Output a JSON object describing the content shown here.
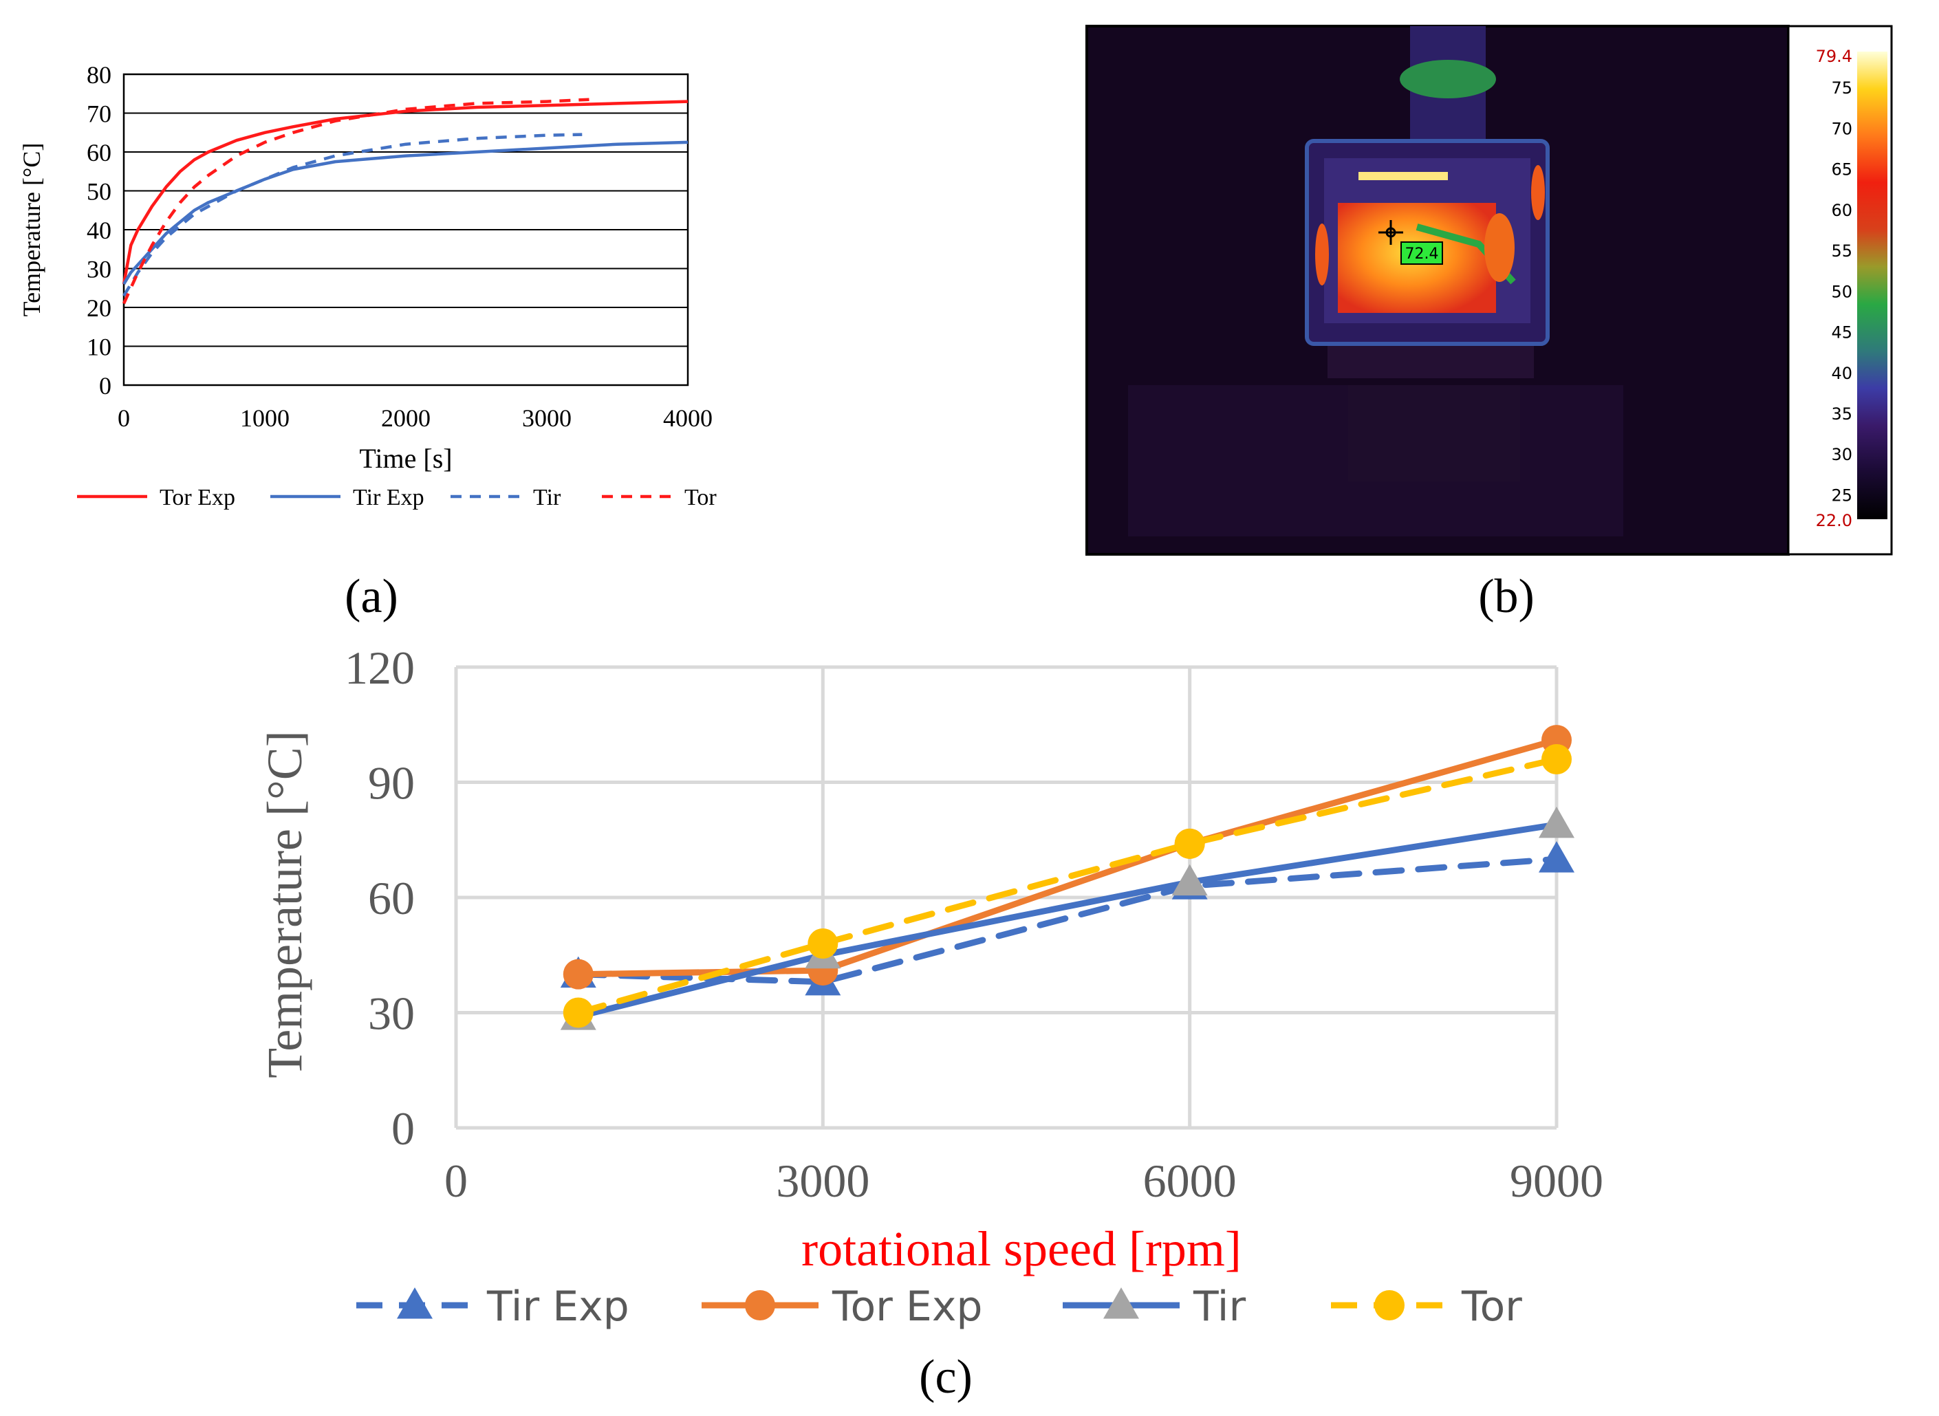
{
  "panel_labels": {
    "a": "(a)",
    "b": "(b)",
    "c": "(c)"
  },
  "colors": {
    "tor_exp_a": "#ff1a1a",
    "tir_exp_a": "#4472c4",
    "tir_a": "#4472c4",
    "tor_a": "#ff1a1a",
    "tir_exp_c": "#4472c4",
    "tor_exp_c": "#ed7d31",
    "tir_c": "#4472c4",
    "tir_marker_c": "#a5a5a5",
    "tor_c": "#ffc000",
    "xlabel_c": "#ff0000",
    "thermal_bg": "#14061f"
  },
  "thermal_image": {
    "scale_max": "79.4",
    "scale_min": "22.0",
    "scale_ticks": [
      "75",
      "70",
      "65",
      "60",
      "55",
      "50",
      "45",
      "40",
      "35",
      "30",
      "25"
    ],
    "spot_label": "72.4"
  },
  "chart_data": [
    {
      "panel": "a",
      "type": "line",
      "title": "",
      "xlabel": "Time [s]",
      "ylabel": "Temperature [°C]",
      "xlim": [
        0,
        4000
      ],
      "ylim": [
        0,
        80
      ],
      "xticks": [
        0,
        1000,
        2000,
        3000,
        4000
      ],
      "yticks": [
        0,
        10,
        20,
        30,
        40,
        50,
        60,
        70,
        80
      ],
      "grid": "horizontal",
      "legend": "bottom",
      "series": [
        {
          "name": "Tor Exp",
          "style": "solid",
          "color": "#ff1a1a",
          "x": [
            0,
            50,
            100,
            200,
            300,
            400,
            500,
            600,
            800,
            1000,
            1200,
            1500,
            2000,
            2500,
            3000,
            3500,
            4000
          ],
          "y": [
            26,
            36,
            40,
            46,
            51,
            55,
            58,
            60,
            63,
            65,
            66.5,
            68.5,
            70.5,
            71.5,
            72,
            72.5,
            73
          ]
        },
        {
          "name": "Tir Exp",
          "style": "solid",
          "color": "#4472c4",
          "x": [
            0,
            50,
            100,
            200,
            300,
            400,
            500,
            600,
            800,
            1000,
            1200,
            1500,
            2000,
            2500,
            3000,
            3500,
            4000
          ],
          "y": [
            26,
            29,
            31,
            35,
            39,
            42,
            45,
            47,
            50,
            53,
            55.5,
            57.5,
            59,
            60,
            61,
            62,
            62.5
          ]
        },
        {
          "name": "Tir",
          "style": "dashed",
          "color": "#4472c4",
          "x": [
            0,
            100,
            200,
            300,
            400,
            500,
            600,
            800,
            1000,
            1200,
            1500,
            2000,
            2500,
            3000,
            3250
          ],
          "y": [
            23,
            29,
            34,
            38,
            41,
            44,
            46,
            50,
            53,
            56,
            59,
            62,
            63.5,
            64.3,
            64.5
          ]
        },
        {
          "name": "Tor",
          "style": "dashed",
          "color": "#ff1a1a",
          "x": [
            0,
            100,
            200,
            300,
            400,
            500,
            600,
            800,
            1000,
            1200,
            1500,
            2000,
            2500,
            3000,
            3300
          ],
          "y": [
            21,
            29,
            36,
            42,
            47,
            51,
            54,
            59,
            62.5,
            65,
            68,
            71,
            72.5,
            73,
            73.5
          ]
        }
      ]
    },
    {
      "panel": "c",
      "type": "line",
      "title": "",
      "xlabel": "rotational speed [rpm]",
      "ylabel": "Temperature [°C]",
      "xlim": [
        0,
        9000
      ],
      "ylim": [
        0,
        120
      ],
      "xticks": [
        0,
        3000,
        6000,
        9000
      ],
      "yticks": [
        0,
        30,
        60,
        90,
        120
      ],
      "grid": "both",
      "legend": "bottom",
      "series": [
        {
          "name": "Tir Exp",
          "style": "dashed",
          "marker": "triangle",
          "color": "#4472c4",
          "marker_color": "#4472c4",
          "x": [
            1000,
            3000,
            6000,
            9000
          ],
          "y": [
            40,
            38,
            63,
            70
          ]
        },
        {
          "name": "Tor Exp",
          "style": "solid",
          "marker": "circle",
          "color": "#ed7d31",
          "marker_color": "#ed7d31",
          "x": [
            1000,
            3000,
            6000,
            9000
          ],
          "y": [
            40,
            41,
            74,
            101
          ]
        },
        {
          "name": "Tir",
          "style": "solid",
          "marker": "triangle",
          "color": "#4472c4",
          "marker_color": "#a5a5a5",
          "x": [
            1000,
            3000,
            6000,
            9000
          ],
          "y": [
            29,
            45,
            64,
            79
          ]
        },
        {
          "name": "Tor",
          "style": "dashed",
          "marker": "circle",
          "color": "#ffc000",
          "marker_color": "#ffc000",
          "x": [
            1000,
            3000,
            6000,
            9000
          ],
          "y": [
            30,
            48,
            74,
            96
          ]
        }
      ]
    }
  ]
}
